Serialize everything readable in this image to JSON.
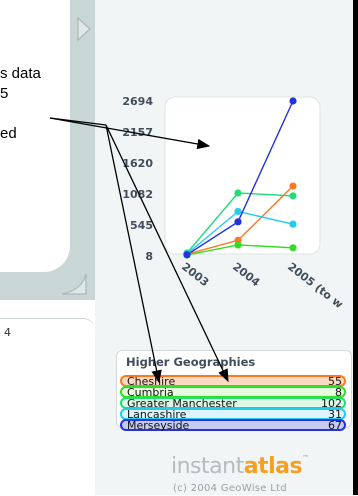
{
  "callout": {
    "line1": "s data",
    "line2": "5",
    "line3": "ed"
  },
  "left_panel": {
    "tick_label": "4"
  },
  "chart_data": {
    "type": "line",
    "title": "",
    "xlabel": "",
    "ylabel": "",
    "categories": [
      "2003",
      "2004",
      "2005 (to w"
    ],
    "yticks": [
      "2694",
      "2157",
      "1620",
      "1082",
      "545",
      "8"
    ],
    "ylim": [
      8,
      2694
    ],
    "grid": false,
    "series": [
      {
        "name": "Cheshire",
        "color": "#ff7722",
        "values": [
          40,
          280,
          1220
        ]
      },
      {
        "name": "Cumbria",
        "color": "#33dd22",
        "values": [
          25,
          200,
          150
        ]
      },
      {
        "name": "Greater Manchester",
        "color": "#22dd77",
        "values": [
          60,
          1100,
          1050
        ]
      },
      {
        "name": "Lancashire",
        "color": "#22ccee",
        "values": [
          45,
          780,
          560
        ]
      },
      {
        "name": "Merseyside",
        "color": "#2233dd",
        "values": [
          30,
          600,
          2694
        ]
      }
    ]
  },
  "legend": {
    "title": "Higher Geographies",
    "items": [
      {
        "name": "Cheshire",
        "value": "55",
        "color": "#ff7722",
        "fill": "#fbd9c2"
      },
      {
        "name": "Cumbria",
        "value": "8",
        "color": "#33dd22",
        "fill": "#e4fbdf"
      },
      {
        "name": "Greater Manchester",
        "value": "102",
        "color": "#22dd77",
        "fill": "#dcf9e8"
      },
      {
        "name": "Lancashire",
        "value": "31",
        "color": "#22ccee",
        "fill": "#dcf4fa"
      },
      {
        "name": "Merseyside",
        "value": "67",
        "color": "#2233dd",
        "fill": "#c6cbf4"
      }
    ]
  },
  "brand": {
    "word1": "instant",
    "word2": "atlas",
    "tm": "™",
    "copyright": "(c) 2004 GeoWise Ltd"
  }
}
